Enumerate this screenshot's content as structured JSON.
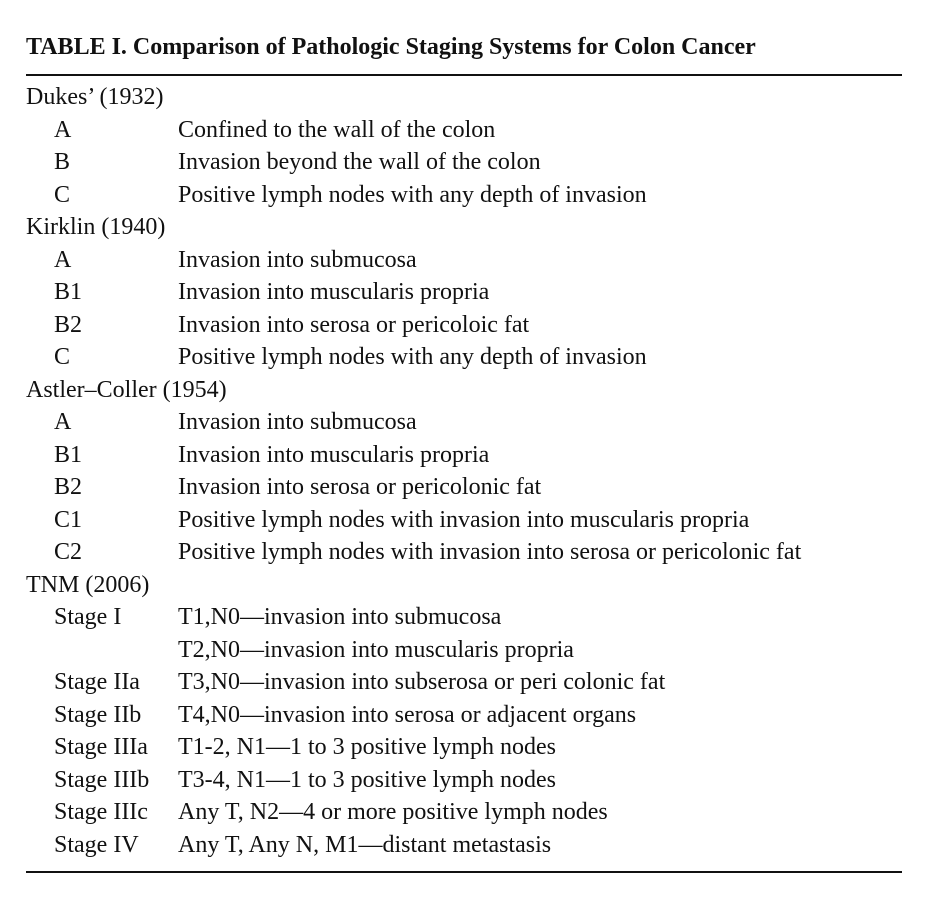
{
  "table": {
    "caption": "TABLE I.  Comparison of Pathologic Staging Systems for Colon Cancer",
    "groups": [
      {
        "title": "Dukes’ (1932)",
        "rows": [
          {
            "stage": "A",
            "desc": "Confined to the wall of the colon"
          },
          {
            "stage": "B",
            "desc": "Invasion beyond the wall of the colon"
          },
          {
            "stage": "C",
            "desc": "Positive lymph nodes with any depth of invasion"
          }
        ]
      },
      {
        "title": "Kirklin (1940)",
        "rows": [
          {
            "stage": "A",
            "desc": "Invasion into submucosa"
          },
          {
            "stage": "B1",
            "desc": "Invasion into muscularis propria"
          },
          {
            "stage": "B2",
            "desc": "Invasion into serosa or pericoloic fat"
          },
          {
            "stage": "C",
            "desc": "Positive lymph nodes with any depth of invasion"
          }
        ]
      },
      {
        "title": "Astler–Coller (1954)",
        "rows": [
          {
            "stage": "A",
            "desc": "Invasion into submucosa"
          },
          {
            "stage": "B1",
            "desc": "Invasion into muscularis propria"
          },
          {
            "stage": "B2",
            "desc": "Invasion into serosa or pericolonic fat"
          },
          {
            "stage": "C1",
            "desc": "Positive lymph nodes with invasion into muscularis propria"
          },
          {
            "stage": "C2",
            "desc": "Positive lymph nodes with invasion into serosa or pericolonic fat"
          }
        ]
      },
      {
        "title": "TNM (2006)",
        "rows": [
          {
            "stage": "Stage I",
            "desc": "T1,N0—invasion into submucosa"
          },
          {
            "stage": "",
            "desc": "T2,N0—invasion into muscularis propria"
          },
          {
            "stage": "Stage IIa",
            "desc": "T3,N0—invasion into subserosa or peri colonic fat"
          },
          {
            "stage": "Stage IIb",
            "desc": "T4,N0—invasion into serosa or adjacent organs"
          },
          {
            "stage": "Stage IIIa",
            "desc": "T1-2, N1—1 to 3 positive lymph nodes"
          },
          {
            "stage": "Stage IIIb",
            "desc": "T3-4, N1—1 to 3 positive lymph nodes"
          },
          {
            "stage": "Stage IIIc",
            "desc": "Any T, N2—4 or more positive lymph nodes"
          },
          {
            "stage": "Stage IV",
            "desc": "Any T, Any N, M1—distant metastasis"
          }
        ]
      }
    ]
  }
}
